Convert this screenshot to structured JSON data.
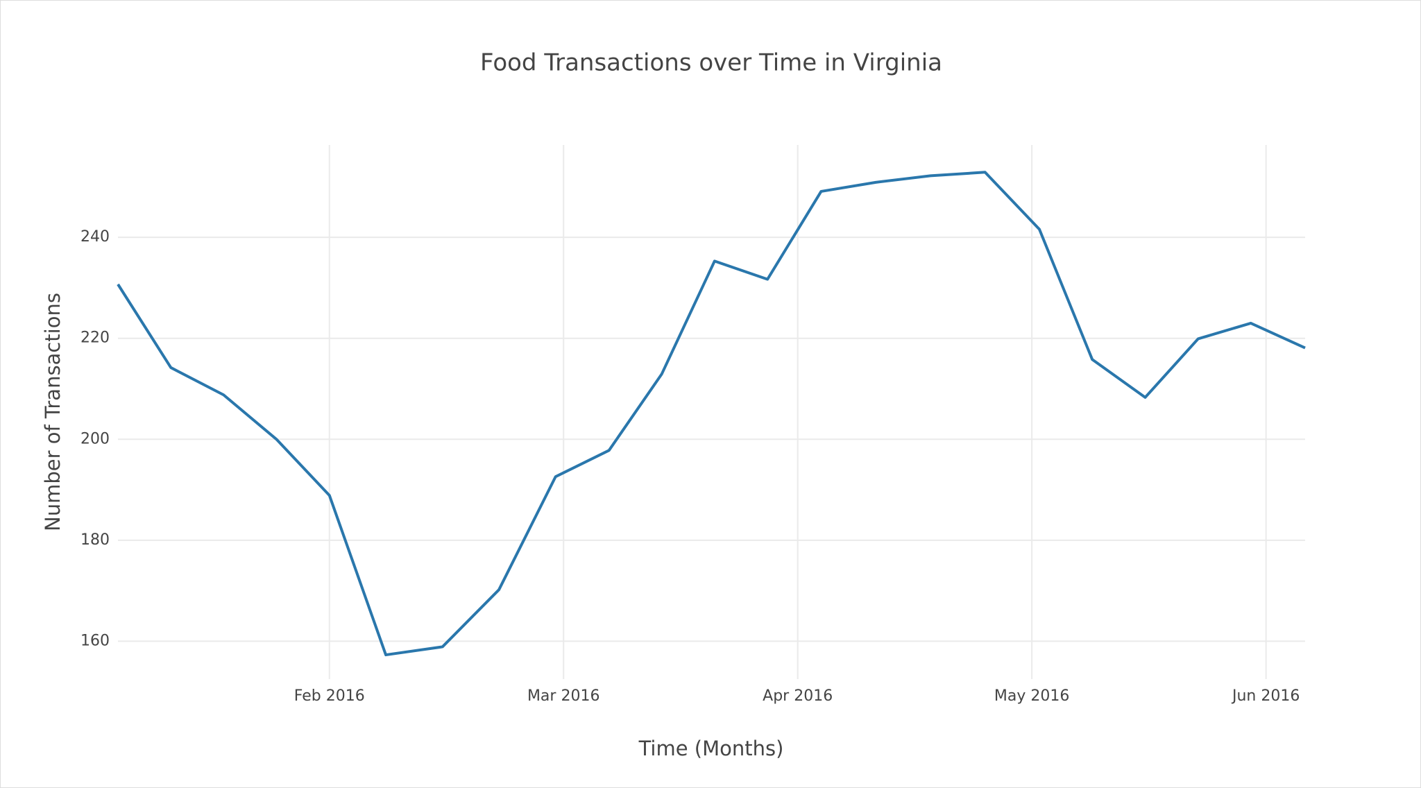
{
  "chart_data": {
    "type": "line",
    "title": "Food Transactions over Time in Virginia",
    "x_label": "Time (Months)",
    "y_label": "Number of Transactions",
    "x": [
      1.097,
      1.323,
      1.548,
      1.774,
      2.0,
      2.241,
      2.483,
      2.724,
      2.966,
      3.194,
      3.419,
      3.645,
      3.871,
      4.1,
      4.333,
      4.567,
      4.8,
      5.032,
      5.258,
      5.484,
      5.71,
      5.935,
      6.167
    ],
    "series": [
      {
        "color": "#2a77ac",
        "values": [
          230.7,
          214.2,
          208.8,
          200,
          188.9,
          157.3,
          158.9,
          170.2,
          192.6,
          197.8,
          212.9,
          235.3,
          231.7,
          249.1,
          250.9,
          252.2,
          252.9,
          241.6,
          215.8,
          208.3,
          219.9,
          223,
          218.1
        ]
      }
    ],
    "xlim": [
      1.097,
      6.167
    ],
    "xticks": [
      {
        "value": 2,
        "label": "Feb 2016"
      },
      {
        "value": 3,
        "label": "Mar 2016"
      },
      {
        "value": 4,
        "label": "Apr 2016"
      },
      {
        "value": 5,
        "label": "May 2016"
      },
      {
        "value": 6,
        "label": "Jun 2016"
      }
    ],
    "ylim": [
      152.5,
      258.3
    ],
    "yticks": [
      160,
      180,
      200,
      220,
      240
    ],
    "grid": true
  }
}
